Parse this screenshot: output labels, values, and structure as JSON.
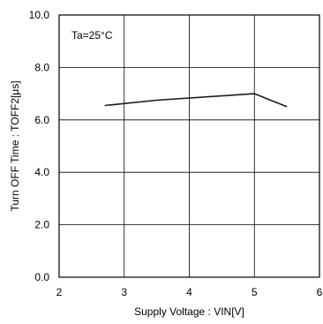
{
  "chart_data": {
    "type": "line",
    "title": "",
    "xlabel": "Supply Voltage : VIN[V]",
    "ylabel": "Turn OFF Time : TOFF2[μs]",
    "xlim": [
      2,
      6
    ],
    "ylim": [
      0,
      10
    ],
    "x_ticks": [
      "2",
      "3",
      "4",
      "5",
      "6"
    ],
    "y_ticks": [
      "0.0",
      "2.0",
      "4.0",
      "6.0",
      "8.0",
      "10.0"
    ],
    "grid": true,
    "annotation": "Ta=25°C",
    "line_color": "#1a1a1a",
    "series": [
      {
        "x": [
          2.7,
          3.5,
          5.0,
          5.5
        ],
        "y": [
          6.55,
          6.75,
          7.0,
          6.5
        ]
      }
    ]
  }
}
